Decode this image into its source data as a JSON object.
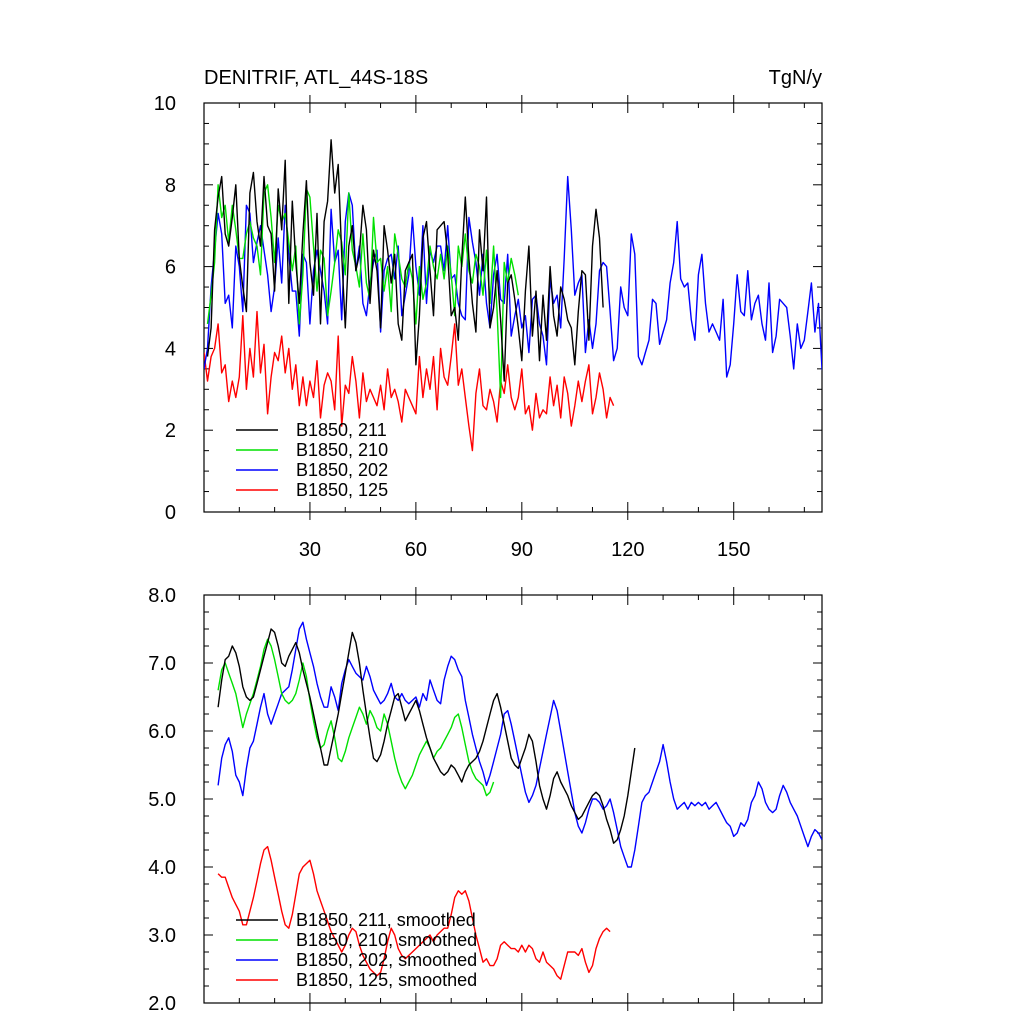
{
  "chart_data": [
    {
      "type": "line",
      "title": "DENITRIF, ATL_44S-18S",
      "units": "TgN/y",
      "xlabel": "",
      "ylabel": "",
      "xlim": [
        0,
        175
      ],
      "ylim": [
        0,
        10
      ],
      "xticks": [
        30,
        60,
        90,
        120,
        150
      ],
      "xtick_labels": [
        "30",
        "60",
        "90",
        "120",
        "150"
      ],
      "yticks": [
        0,
        2,
        4,
        6,
        8,
        10
      ],
      "ytick_labels": [
        "0",
        "2",
        "4",
        "6",
        "8",
        "10"
      ],
      "legend": "bottom-left",
      "series": [
        {
          "name": "B1850, 211",
          "color": "#000000",
          "x_start": 1,
          "values": [
            3.8,
            4.5,
            6.9,
            7.7,
            8.2,
            6.8,
            6.5,
            7.2,
            8.0,
            6.2,
            5.5,
            4.9,
            7.8,
            8.3,
            7.1,
            6.5,
            8.2,
            7.0,
            6.8,
            5.4,
            7.9,
            6.9,
            8.6,
            5.1,
            7.6,
            6.1,
            5.1,
            6.8,
            8.1,
            6.1,
            5.3,
            7.3,
            4.6,
            7.1,
            7.6,
            9.1,
            7.8,
            8.5,
            6.3,
            4.5,
            6.5,
            7.0,
            5.9,
            6.3,
            7.5,
            6.9,
            5.1,
            6.4,
            5.9,
            4.5,
            7.0,
            6.4,
            5.6,
            6.3,
            4.6,
            4.2,
            5.9,
            6.1,
            6.3,
            3.6,
            4.8,
            6.7,
            7.1,
            5.9,
            4.8,
            6.9,
            7.0,
            7.1,
            6.3,
            4.8,
            5.0,
            4.2,
            6.2,
            7.7,
            6.2,
            5.1,
            4.4,
            6.9,
            5.9,
            7.7,
            4.5,
            5.0,
            5.9,
            4.7,
            3.2,
            5.6,
            5.8,
            5.2,
            4.5,
            3.7,
            5.4,
            6.5,
            4.3,
            5.4,
            3.7,
            5.3,
            4.2,
            6.0,
            4.8,
            4.3,
            5.5,
            5.2,
            4.7,
            4.5,
            3.6,
            4.9,
            5.9,
            5.8,
            4.2,
            6.5,
            7.4,
            6.7,
            5.0
          ]
        },
        {
          "name": "B1850, 210",
          "color": "#00e000",
          "x_start": 1,
          "values": [
            4.6,
            5.3,
            6.1,
            8.0,
            7.2,
            7.5,
            6.6,
            7.5,
            6.9,
            6.2,
            6.2,
            6.8,
            7.1,
            6.7,
            6.5,
            5.8,
            7.8,
            8.0,
            7.2,
            6.1,
            7.5,
            7.1,
            7.3,
            6.6,
            5.9,
            6.5,
            4.6,
            5.8,
            7.9,
            7.7,
            6.5,
            5.4,
            6.4,
            6.2,
            4.8,
            5.4,
            6.1,
            6.9,
            6.6,
            5.8,
            7.8,
            6.4,
            6.0,
            5.5,
            6.8,
            5.6,
            5.2,
            7.2,
            6.1,
            6.2,
            5.4,
            6.0,
            4.9,
            6.8,
            6.3,
            5.7,
            5.5,
            6.1,
            5.7,
            4.6,
            6.0,
            5.2,
            5.6,
            6.5,
            6.0,
            5.7,
            6.3,
            5.7,
            6.5,
            5.8,
            4.8,
            6.5,
            6.0,
            6.8,
            5.9,
            5.6,
            6.3,
            6.0,
            5.3,
            6.4,
            5.1,
            6.5,
            4.9,
            2.8,
            6.1,
            5.6,
            6.2,
            5.8,
            5.3
          ]
        },
        {
          "name": "B1850, 202",
          "color": "#0000ff",
          "x_start": 0,
          "values": [
            3.5,
            4.0,
            5.5,
            6.4,
            7.3,
            6.8,
            5.1,
            5.3,
            4.5,
            6.5,
            6.0,
            4.9,
            7.5,
            7.3,
            6.1,
            6.6,
            7.0,
            6.4,
            5.8,
            4.9,
            5.5,
            6.7,
            5.6,
            7.5,
            6.3,
            5.4,
            5.4,
            4.3,
            6.3,
            6.1,
            4.6,
            5.9,
            6.4,
            5.9,
            5.4,
            4.6,
            7.4,
            6.1,
            6.4,
            4.7,
            7.1,
            7.8,
            7.5,
            5.9,
            6.5,
            5.1,
            4.8,
            5.6,
            6.1,
            6.4,
            4.4,
            5.9,
            6.2,
            6.3,
            5.7,
            6.5,
            4.8,
            5.3,
            5.8,
            7.2,
            6.0,
            5.3,
            7.0,
            5.1,
            6.4,
            6.1,
            6.5,
            6.5,
            5.9,
            7.0,
            5.7,
            5.8,
            5.1,
            4.8,
            4.7,
            7.2,
            6.6,
            6.1,
            5.3,
            6.3,
            5.1,
            4.5,
            5.8,
            6.3,
            5.2,
            5.1,
            6.3,
            4.3,
            4.8,
            5.2,
            4.5,
            4.8,
            3.9,
            5.2,
            5.3,
            4.6,
            4.3,
            3.6,
            5.7,
            5.1,
            5.3,
            4.5,
            6.2,
            8.2,
            6.9,
            5.3,
            5.6,
            5.8,
            3.9,
            4.7,
            4.0,
            4.6,
            5.9,
            6.1,
            6.0,
            4.9,
            3.7,
            4.0,
            5.5,
            5.0,
            4.8,
            6.8,
            6.3,
            3.8,
            3.6,
            3.9,
            4.2,
            5.2,
            5.1,
            4.1,
            4.4,
            4.7,
            5.6,
            6.1,
            7.1,
            5.7,
            5.5,
            5.6,
            4.7,
            4.2,
            5.8,
            6.3,
            5.1,
            4.4,
            4.6,
            4.4,
            4.2,
            5.2,
            3.3,
            3.6,
            4.6,
            5.8,
            4.9,
            4.8,
            5.9,
            4.7,
            5.1,
            5.3,
            4.6,
            4.2,
            5.6,
            3.9,
            4.3,
            5.2,
            5.1,
            5.0,
            4.3,
            3.5,
            4.6,
            4.0,
            4.2,
            4.9,
            5.6,
            4.4,
            5.1,
            3.5,
            3.3
          ]
        },
        {
          "name": "B1850, 125",
          "color": "#ff0000",
          "x_start": 0,
          "values": [
            3.9,
            3.2,
            3.8,
            4.0,
            4.6,
            3.4,
            3.6,
            2.7,
            3.2,
            2.8,
            3.3,
            4.8,
            3.0,
            4.0,
            3.3,
            4.9,
            3.4,
            4.1,
            2.4,
            3.3,
            3.9,
            3.7,
            4.3,
            3.4,
            4.0,
            3.0,
            3.6,
            2.6,
            3.3,
            2.6,
            3.2,
            2.8,
            3.7,
            2.3,
            3.1,
            3.4,
            3.2,
            2.5,
            4.3,
            2.1,
            3.1,
            2.9,
            3.8,
            3.2,
            2.3,
            3.4,
            2.7,
            3.0,
            2.8,
            2.6,
            3.1,
            2.5,
            3.5,
            2.8,
            3.0,
            2.7,
            2.2,
            3.0,
            2.8,
            2.6,
            2.4,
            3.8,
            2.8,
            3.5,
            3.0,
            3.8,
            2.5,
            4.0,
            3.3,
            3.1,
            3.8,
            4.6,
            3.1,
            3.5,
            2.8,
            2.1,
            1.5,
            2.9,
            3.5,
            2.6,
            2.5,
            3.0,
            2.7,
            2.2,
            3.2,
            2.9,
            3.6,
            2.8,
            2.5,
            2.8,
            3.5,
            2.4,
            2.6,
            2.0,
            2.9,
            2.3,
            2.5,
            2.4,
            3.3,
            2.6,
            3.1,
            2.3,
            3.3,
            2.9,
            2.1,
            2.6,
            3.2,
            2.7,
            3.2,
            3.6,
            2.4,
            2.8,
            3.4,
            3.0,
            2.3,
            2.8,
            2.6
          ]
        }
      ]
    },
    {
      "type": "line",
      "title": "",
      "xlabel": "",
      "ylabel": "",
      "xlim": [
        0,
        175
      ],
      "ylim": [
        2.0,
        8.0
      ],
      "yticks": [
        2.0,
        3.0,
        4.0,
        5.0,
        6.0,
        7.0,
        8.0
      ],
      "ytick_labels": [
        "2.0",
        "3.0",
        "4.0",
        "5.0",
        "6.0",
        "7.0",
        "8.0"
      ],
      "legend": "bottom-left",
      "series": [
        {
          "name": "B1850, 211, smoothed",
          "color": "#000000",
          "x_start": 4,
          "values": [
            6.35,
            6.75,
            7.05,
            7.1,
            7.25,
            7.15,
            6.95,
            6.65,
            6.5,
            6.45,
            6.5,
            6.7,
            6.9,
            7.1,
            7.3,
            7.5,
            7.45,
            7.25,
            7.0,
            6.95,
            7.1,
            7.2,
            7.3,
            7.15,
            6.9,
            6.7,
            6.5,
            6.25,
            6.0,
            5.75,
            5.5,
            5.5,
            5.75,
            6.0,
            6.25,
            6.55,
            6.85,
            7.15,
            7.45,
            7.3,
            7.0,
            6.6,
            6.25,
            5.9,
            5.6,
            5.55,
            5.65,
            5.85,
            6.1,
            6.3,
            6.5,
            6.55,
            6.35,
            6.15,
            6.25,
            6.35,
            6.45,
            6.3,
            6.1,
            5.9,
            5.75,
            5.6,
            5.5,
            5.4,
            5.35,
            5.4,
            5.5,
            5.45,
            5.35,
            5.25,
            5.4,
            5.5,
            5.55,
            5.6,
            5.7,
            5.85,
            6.05,
            6.25,
            6.45,
            6.55,
            6.35,
            6.1,
            5.85,
            5.6,
            5.5,
            5.45,
            5.6,
            5.75,
            5.95,
            5.85,
            5.55,
            5.2,
            5.0,
            4.85,
            5.05,
            5.3,
            5.4,
            5.25,
            5.15,
            5.05,
            4.9,
            4.8,
            4.7,
            4.75,
            4.85,
            4.95,
            5.05,
            5.1,
            5.05,
            4.9,
            4.7,
            4.55,
            4.35,
            4.4,
            4.55,
            4.75,
            5.05,
            5.4,
            5.75
          ]
        },
        {
          "name": "B1850, 210, smoothed",
          "color": "#00e000",
          "x_start": 4,
          "values": [
            6.6,
            6.9,
            7.0,
            6.85,
            6.7,
            6.55,
            6.3,
            6.05,
            6.25,
            6.4,
            6.55,
            6.75,
            6.95,
            7.2,
            7.35,
            7.25,
            7.05,
            6.8,
            6.55,
            6.45,
            6.4,
            6.45,
            6.55,
            6.75,
            7.0,
            6.8,
            6.45,
            6.15,
            5.9,
            5.75,
            5.8,
            6.0,
            6.15,
            5.9,
            5.6,
            5.55,
            5.7,
            5.9,
            6.05,
            6.2,
            6.35,
            6.25,
            6.1,
            6.3,
            6.2,
            6.05,
            6.0,
            6.25,
            6.1,
            5.85,
            5.6,
            5.4,
            5.25,
            5.15,
            5.25,
            5.35,
            5.5,
            5.65,
            5.75,
            5.85,
            5.75,
            5.6,
            5.7,
            5.75,
            5.85,
            5.95,
            6.05,
            6.2,
            6.25,
            6.05,
            5.8,
            5.55,
            5.4,
            5.3,
            5.25,
            5.2,
            5.05,
            5.1,
            5.25
          ]
        },
        {
          "name": "B1850, 202, smoothed",
          "color": "#0000ff",
          "x_start": 4,
          "values": [
            5.2,
            5.6,
            5.8,
            5.9,
            5.7,
            5.35,
            5.25,
            5.05,
            5.45,
            5.75,
            5.85,
            6.1,
            6.35,
            6.55,
            6.25,
            6.1,
            6.25,
            6.4,
            6.55,
            6.6,
            6.65,
            6.9,
            7.2,
            7.5,
            7.6,
            7.35,
            7.15,
            6.95,
            6.7,
            6.5,
            6.35,
            6.35,
            6.65,
            6.5,
            6.3,
            6.7,
            6.9,
            7.05,
            6.95,
            6.85,
            6.8,
            6.75,
            6.95,
            6.8,
            6.6,
            6.5,
            6.4,
            6.45,
            6.55,
            6.7,
            6.5,
            6.45,
            6.55,
            6.45,
            6.4,
            6.45,
            6.5,
            6.35,
            6.55,
            6.45,
            6.75,
            6.6,
            6.45,
            6.4,
            6.75,
            6.95,
            7.1,
            7.05,
            6.9,
            6.8,
            6.45,
            6.2,
            5.95,
            5.75,
            5.55,
            5.4,
            5.2,
            5.35,
            5.55,
            5.75,
            5.95,
            6.25,
            6.3,
            6.1,
            5.85,
            5.6,
            5.35,
            5.1,
            4.95,
            5.05,
            5.2,
            5.45,
            5.7,
            5.95,
            6.2,
            6.45,
            6.3,
            6.0,
            5.7,
            5.4,
            5.1,
            4.8,
            4.6,
            4.5,
            4.65,
            4.85,
            5.0,
            5.0,
            4.95,
            4.85,
            4.9,
            5.0,
            4.8,
            4.55,
            4.3,
            4.15,
            4.0,
            4.0,
            4.25,
            4.6,
            4.95,
            5.05,
            5.1,
            5.25,
            5.4,
            5.55,
            5.8,
            5.55,
            5.25,
            5.0,
            4.85,
            4.9,
            4.95,
            4.85,
            4.95,
            4.9,
            4.95,
            4.9,
            4.95,
            4.85,
            4.9,
            4.95,
            4.85,
            4.75,
            4.65,
            4.6,
            4.45,
            4.5,
            4.65,
            4.6,
            4.7,
            4.95,
            5.05,
            5.25,
            5.15,
            4.95,
            4.85,
            4.8,
            4.85,
            5.05,
            5.2,
            5.1,
            4.95,
            4.85,
            4.75,
            4.6,
            4.45,
            4.3,
            4.45,
            4.55,
            4.5,
            4.4
          ]
        },
        {
          "name": "B1850, 125, smoothed",
          "color": "#ff0000",
          "x_start": 4,
          "values": [
            3.9,
            3.85,
            3.85,
            3.7,
            3.55,
            3.45,
            3.35,
            3.15,
            3.15,
            3.35,
            3.55,
            3.8,
            4.05,
            4.25,
            4.3,
            4.1,
            3.85,
            3.6,
            3.35,
            3.15,
            3.1,
            3.3,
            3.6,
            3.9,
            4.0,
            4.05,
            4.1,
            3.9,
            3.65,
            3.5,
            3.35,
            3.2,
            3.05,
            2.95,
            2.85,
            2.75,
            2.85,
            3.0,
            3.1,
            3.05,
            2.85,
            2.7,
            2.6,
            2.5,
            2.45,
            2.4,
            2.45,
            2.65,
            2.9,
            3.1,
            3.0,
            2.8,
            2.7,
            2.65,
            2.7,
            2.75,
            2.8,
            2.85,
            2.9,
            2.95,
            3.0,
            2.9,
            3.0,
            3.05,
            3.1,
            3.1,
            3.3,
            3.55,
            3.65,
            3.6,
            3.65,
            3.5,
            3.25,
            3.0,
            2.8,
            2.6,
            2.65,
            2.55,
            2.55,
            2.65,
            2.85,
            2.9,
            2.85,
            2.8,
            2.8,
            2.75,
            2.85,
            2.75,
            2.85,
            2.8,
            2.65,
            2.6,
            2.75,
            2.6,
            2.55,
            2.5,
            2.4,
            2.35,
            2.55,
            2.75,
            2.75,
            2.75,
            2.7,
            2.8,
            2.6,
            2.45,
            2.55,
            2.8,
            2.95,
            3.05,
            3.1,
            3.05
          ]
        }
      ]
    }
  ]
}
